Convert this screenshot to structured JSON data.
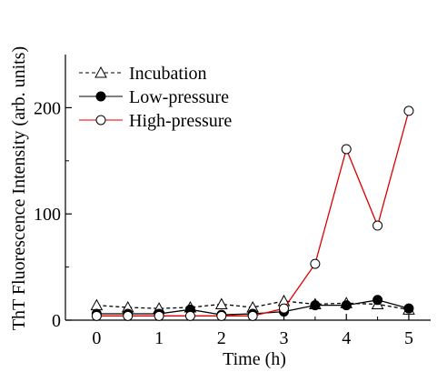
{
  "chart_data": {
    "type": "line",
    "title": "",
    "xlabel": "Time (h)",
    "ylabel": "ThT Fluorescence Intensity (arb. units)",
    "xlim": [
      -0.5,
      5.35
    ],
    "ylim": [
      0,
      250
    ],
    "xticks": [
      0,
      1,
      2,
      3,
      4,
      5
    ],
    "xtick_labels": [
      "0",
      "1",
      "2",
      "3",
      "4",
      "5"
    ],
    "yticks": [
      0,
      100,
      200
    ],
    "ytick_labels": [
      "0",
      "100",
      "200"
    ],
    "grid": false,
    "legend_position": "top-left",
    "x": [
      0,
      0.5,
      1,
      1.5,
      2,
      2.5,
      3,
      3.5,
      4,
      4.5,
      5
    ],
    "series": [
      {
        "name": "Incubation",
        "marker": "open-triangle",
        "line_style": "dashed",
        "color": "#000000",
        "values": [
          14,
          12,
          11,
          12,
          15,
          12,
          18,
          15,
          16,
          15,
          10
        ]
      },
      {
        "name": "Low-pressure",
        "marker": "filled-circle",
        "line_style": "solid",
        "color": "#000000",
        "values": [
          6,
          6,
          6,
          10,
          5,
          6,
          8,
          14,
          14,
          19,
          11
        ]
      },
      {
        "name": "High-pressure",
        "marker": "open-circle",
        "line_style": "solid",
        "color": "#e00000",
        "values": [
          4,
          4,
          4,
          4,
          4,
          4,
          11,
          53,
          161,
          89,
          197
        ]
      }
    ]
  }
}
